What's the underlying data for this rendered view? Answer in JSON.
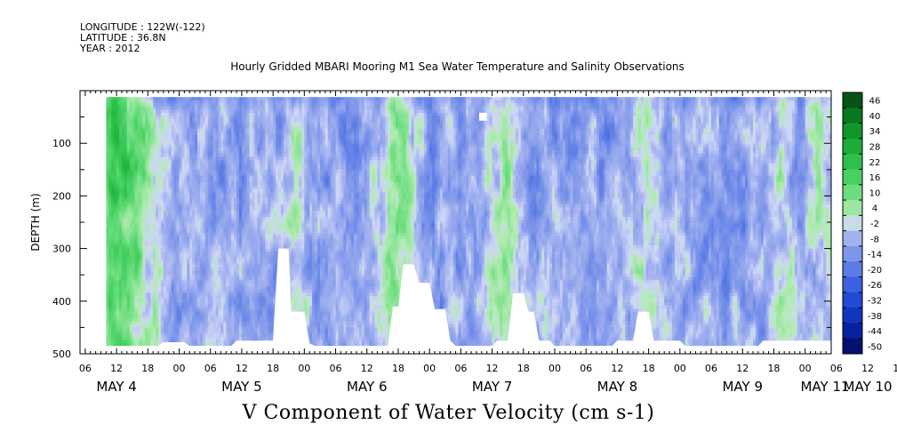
{
  "header": {
    "longitude": "LONGITUDE : 122W(-122)",
    "latitude": "LATITUDE : 36.8N",
    "year": "YEAR : 2012"
  },
  "chart_data": {
    "type": "heatmap",
    "title": "Hourly Gridded MBARI Mooring M1 Sea Water Temperature and Salinity Observations",
    "variable_label": "V Component of Water Velocity (cm s-1)",
    "ylabel": "DEPTH (m)",
    "y_range": [
      0,
      500
    ],
    "y_inverted": true,
    "y_ticks": [
      100,
      200,
      300,
      400,
      500
    ],
    "x_range_hours": [
      0,
      144
    ],
    "x_tick_hour_labels": [
      "06",
      "12",
      "18",
      "00",
      "06",
      "12",
      "18",
      "00",
      "06",
      "12",
      "18",
      "00",
      "06",
      "12",
      "18",
      "00",
      "06",
      "12",
      "18",
      "00",
      "06",
      "12",
      "18",
      "00",
      "06",
      "12",
      "18",
      "00",
      "06",
      "12",
      "18",
      "00",
      "06"
    ],
    "x_day_labels": [
      "MAY  4",
      "MAY  5",
      "MAY  6",
      "MAY  7",
      "MAY  8",
      "MAY  9",
      "MAY 10",
      "MAY 11"
    ],
    "colorbar_levels": [
      46,
      40,
      34,
      28,
      22,
      16,
      10,
      4,
      -2,
      -8,
      -14,
      -20,
      -26,
      -32,
      -38,
      -44,
      -50
    ],
    "color_scale": [
      [
        -50,
        "#000a5a"
      ],
      [
        -38,
        "#0a2ab4"
      ],
      [
        -26,
        "#2a55dc"
      ],
      [
        -14,
        "#6b88e8"
      ],
      [
        -4,
        "#a9b7f0"
      ],
      [
        0,
        "#cfd7f7"
      ],
      [
        4,
        "#b2ecb2"
      ],
      [
        16,
        "#55d86e"
      ],
      [
        28,
        "#22b840"
      ],
      [
        40,
        "#0b8a25"
      ],
      [
        50,
        "#044d14"
      ]
    ],
    "data_start_hour": 5,
    "data_top_depth": 12,
    "bottom_depth_profile": [
      [
        5,
        485
      ],
      [
        15,
        485
      ],
      [
        16,
        478
      ],
      [
        20,
        478
      ],
      [
        21,
        485
      ],
      [
        29,
        485
      ],
      [
        30,
        475
      ],
      [
        37,
        475
      ],
      [
        38,
        300
      ],
      [
        39,
        300
      ],
      [
        40,
        300
      ],
      [
        40.5,
        420
      ],
      [
        43,
        420
      ],
      [
        44,
        480
      ],
      [
        45,
        485
      ],
      [
        59,
        485
      ],
      [
        60,
        410
      ],
      [
        61,
        410
      ],
      [
        62,
        330
      ],
      [
        64,
        330
      ],
      [
        65,
        365
      ],
      [
        67,
        365
      ],
      [
        68,
        415
      ],
      [
        70,
        415
      ],
      [
        71,
        475
      ],
      [
        72,
        485
      ],
      [
        79,
        485
      ],
      [
        80,
        475
      ],
      [
        82,
        475
      ],
      [
        83,
        385
      ],
      [
        85,
        385
      ],
      [
        86,
        420
      ],
      [
        87,
        420
      ],
      [
        88,
        475
      ],
      [
        90,
        475
      ],
      [
        91,
        485
      ],
      [
        102,
        485
      ],
      [
        103,
        475
      ],
      [
        106,
        475
      ],
      [
        107,
        420
      ],
      [
        109,
        420
      ],
      [
        110,
        475
      ],
      [
        115,
        475
      ],
      [
        116,
        485
      ],
      [
        130,
        485
      ],
      [
        131,
        475
      ],
      [
        145,
        475
      ]
    ],
    "missing_blocks": [
      {
        "hour_start": 76.5,
        "hour_end": 78,
        "depth_top": 42,
        "depth_bottom": 57
      }
    ],
    "positive_bands": [
      {
        "center_hour": 9,
        "width_hours": 5,
        "strength": 20
      },
      {
        "center_hour": 6,
        "width_hours": 2.5,
        "strength": 10
      },
      {
        "center_hour": 41,
        "width_hours": 2,
        "strength": 8
      },
      {
        "center_hour": 60,
        "width_hours": 2.5,
        "strength": 12
      },
      {
        "center_hour": 63,
        "width_hours": 2,
        "strength": 10
      },
      {
        "center_hour": 81,
        "width_hours": 3,
        "strength": 10
      },
      {
        "center_hour": 108,
        "width_hours": 2.5,
        "strength": 8
      },
      {
        "center_hour": 134,
        "width_hours": 2,
        "strength": 9
      },
      {
        "center_hour": 141,
        "width_hours": 2,
        "strength": 8
      }
    ]
  }
}
